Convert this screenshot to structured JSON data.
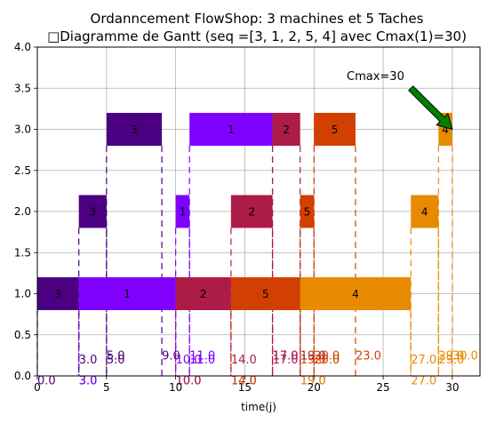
{
  "chart_data": {
    "type": "gantt",
    "title_line1": "Ordanncement FlowShop: 3 machines et 5 Taches",
    "title_line2": "□Diagramme de Gantt (seq =[3, 1, 2, 5, 4] avec Cmax(1)=30)",
    "xlabel": "time(j)",
    "ylabel": "",
    "xlim": [
      0,
      32
    ],
    "ylim": [
      0,
      4
    ],
    "x_ticks": [
      0,
      5,
      10,
      15,
      20,
      25,
      30
    ],
    "y_ticks": [
      "0.0",
      "0.5",
      "1.0",
      "1.5",
      "2.0",
      "2.5",
      "3.0",
      "3.5",
      "4.0"
    ],
    "grid": true,
    "cmax_label": "Cmax=30",
    "cmax_value": 30,
    "arrow_color": "#008000",
    "job_colors": {
      "3": "#4b0082",
      "1": "#8000ff",
      "2": "#ad1b47",
      "5": "#d14000",
      "4": "#e88a00"
    },
    "machines": [
      {
        "y": 1,
        "label_offset": 0,
        "tasks": [
          {
            "job": "3",
            "label": "3",
            "start": 0,
            "end": 3,
            "start_label": "0.0",
            "end_label": "3.0"
          },
          {
            "job": "1",
            "label": "1",
            "start": 3,
            "end": 10,
            "start_label": "3.0",
            "end_label": "10.0"
          },
          {
            "job": "2",
            "label": "2",
            "start": 10,
            "end": 14,
            "start_label": "10.0",
            "end_label": "14.0"
          },
          {
            "job": "5",
            "label": "5",
            "start": 14,
            "end": 19,
            "start_label": "14.0",
            "end_label": "19.0"
          },
          {
            "job": "4",
            "label": "4",
            "start": 19,
            "end": 27,
            "start_label": "19.0",
            "end_label": "27.0"
          }
        ]
      },
      {
        "y": 2,
        "label_offset": 1,
        "tasks": [
          {
            "job": "3",
            "label": "3",
            "start": 3,
            "end": 5,
            "start_label": "3.0",
            "end_label": "5.0"
          },
          {
            "job": "1",
            "label": "1",
            "start": 10,
            "end": 11,
            "start_label": "10.0",
            "end_label": "11.0"
          },
          {
            "job": "2",
            "label": "2",
            "start": 14,
            "end": 17,
            "start_label": "14.0",
            "end_label": "17.0"
          },
          {
            "job": "5",
            "label": "5",
            "start": 19,
            "end": 20,
            "start_label": "19.0",
            "end_label": "20.0"
          },
          {
            "job": "4",
            "label": "4",
            "start": 27,
            "end": 29,
            "start_label": "27.0",
            "end_label": "29.0"
          }
        ]
      },
      {
        "y": 3,
        "label_offset": 2,
        "tasks": [
          {
            "job": "3",
            "label": "3",
            "start": 5,
            "end": 9,
            "start_label": "5.0",
            "end_label": "9.0"
          },
          {
            "job": "1",
            "label": "1",
            "start": 11,
            "end": 17,
            "start_label": "11.0",
            "end_label": "17.0"
          },
          {
            "job": "2",
            "label": "2",
            "start": 17,
            "end": 19,
            "start_label": "17.0",
            "end_label": "19.0"
          },
          {
            "job": "5",
            "label": "5",
            "start": 20,
            "end": 23,
            "start_label": "20.0",
            "end_label": "23.0"
          },
          {
            "job": "4",
            "label": "4",
            "start": 29,
            "end": 30,
            "start_label": "29.0",
            "end_label": "30.0"
          }
        ]
      }
    ]
  }
}
